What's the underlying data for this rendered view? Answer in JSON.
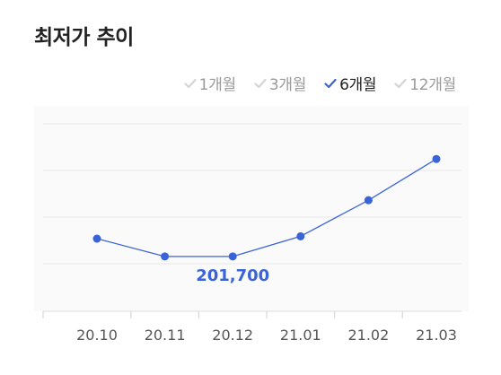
{
  "title": "최저가 추이",
  "periods": [
    {
      "label": "1개월",
      "active": false
    },
    {
      "label": "3개월",
      "active": false
    },
    {
      "label": "6개월",
      "active": true
    },
    {
      "label": "12개월",
      "active": false
    }
  ],
  "colors": {
    "line": "#3a63d8",
    "active_check": "#3a63d8",
    "inactive_check": "#d4d4d4",
    "grid": "#ececec",
    "axis_label": "#555555"
  },
  "chart_data": {
    "type": "line",
    "x": [
      "20.10",
      "20.11",
      "20.12",
      "21.01",
      "21.02",
      "21.03"
    ],
    "series": [
      {
        "values": [
          205500,
          201700,
          201700,
          206000,
          213700,
          222500
        ]
      }
    ],
    "ylim": [
      190000,
      230000
    ],
    "grid": true,
    "annotation": {
      "index": 2,
      "label": "201,700"
    }
  }
}
